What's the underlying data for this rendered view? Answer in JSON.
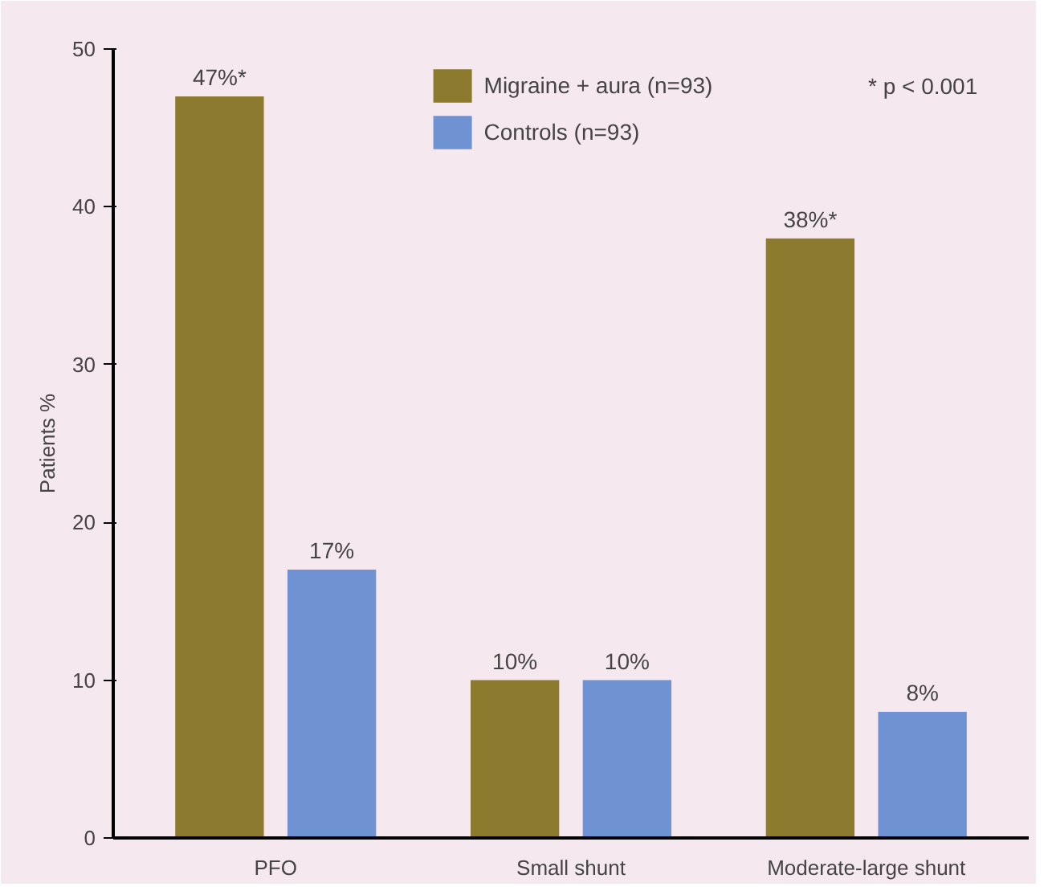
{
  "chart_data": {
    "type": "bar",
    "ylabel": "Patients %",
    "categories": [
      "PFO",
      "Small shunt",
      "Moderate-large shunt"
    ],
    "series": [
      {
        "name": "Migraine + aura (n=93)",
        "color": "#8c7a2e",
        "values": [
          47,
          10,
          38
        ],
        "value_labels": [
          "47%*",
          "10%",
          "38%*"
        ]
      },
      {
        "name": "Controls (n=93)",
        "color": "#6f93d2",
        "values": [
          17,
          10,
          8
        ],
        "value_labels": [
          "17%",
          "10%",
          "8%"
        ]
      }
    ],
    "ylim": [
      0,
      50
    ],
    "yticks": [
      0,
      10,
      20,
      30,
      40,
      50
    ],
    "grid": false,
    "legend": "top",
    "annotations": [
      "* p < 0.001"
    ]
  }
}
